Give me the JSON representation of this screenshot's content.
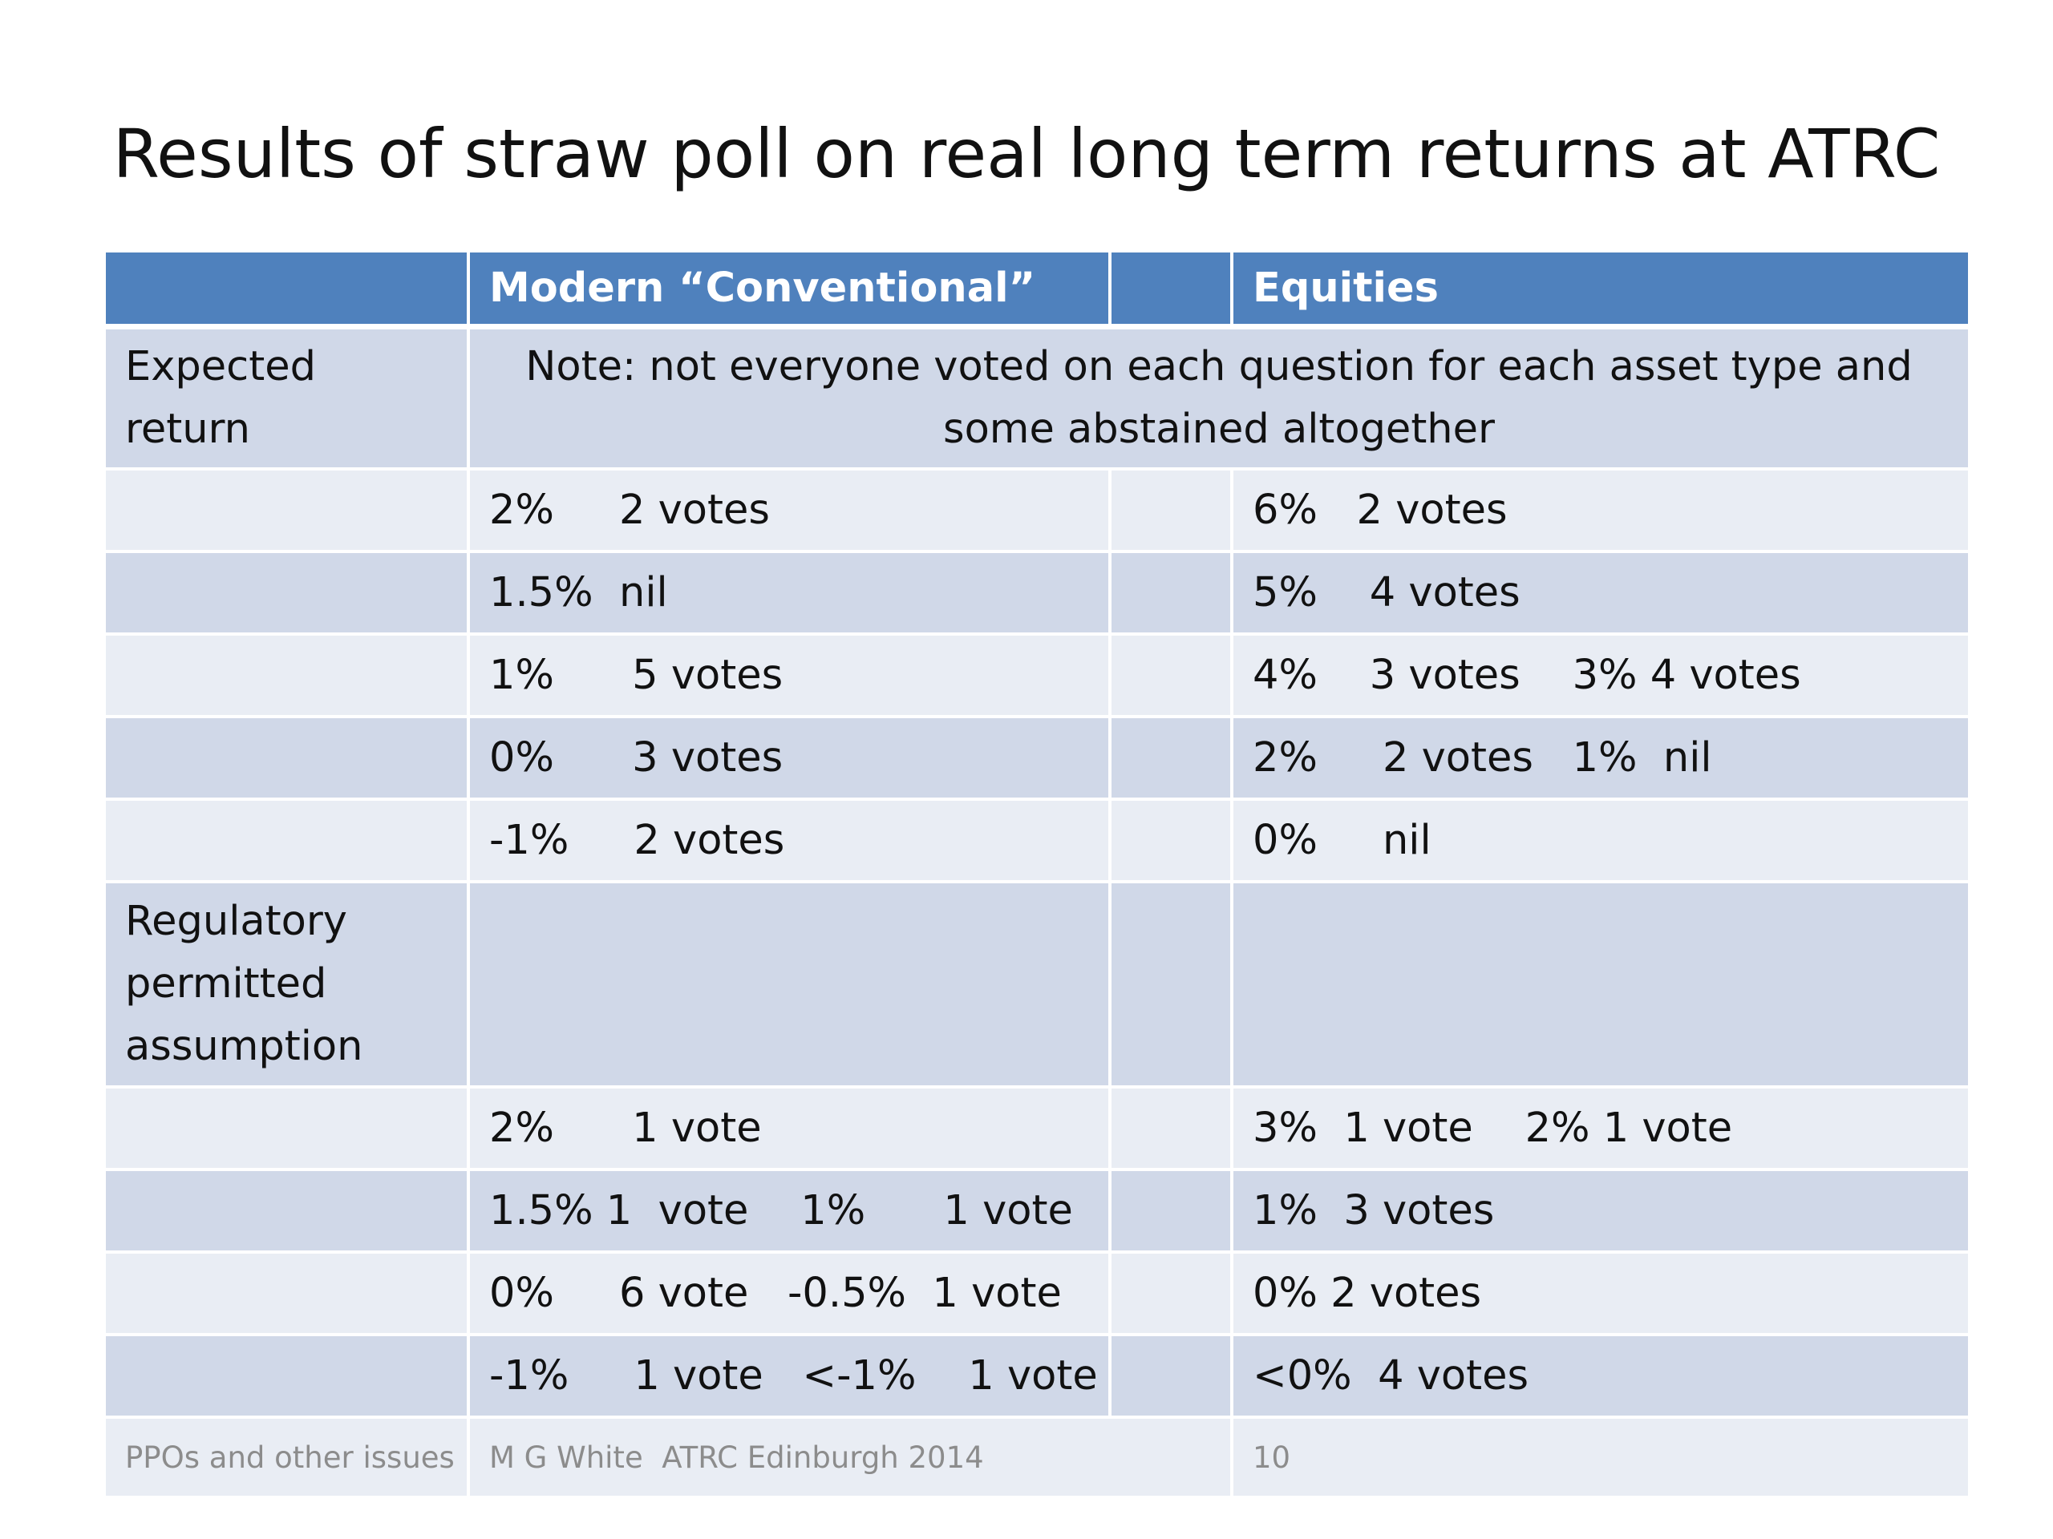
{
  "title": "Results of straw poll on real long term returns at ATRC",
  "table": {
    "headers": [
      "",
      "Modern “Conventional”",
      "",
      "Equities"
    ],
    "expected_return": {
      "label": "Expected return",
      "note": "Note: not everyone voted on each question for each asset type and some abstained altogether",
      "rows": [
        {
          "conventional": "2%     2 votes",
          "equities": "6%   2 votes"
        },
        {
          "conventional": "1.5%  nil",
          "equities": "5%    4 votes"
        },
        {
          "conventional": "1%      5 votes",
          "equities": "4%    3 votes    3% 4 votes"
        },
        {
          "conventional": "0%      3 votes",
          "equities": "2%     2 votes   1%  nil"
        },
        {
          "conventional": "-1%     2 votes",
          "equities": "0%     nil"
        }
      ]
    },
    "regulatory": {
      "label": "Regulatory permitted assumption",
      "rows": [
        {
          "conventional": "2%      1 vote",
          "equities": "3%  1 vote    2% 1 vote"
        },
        {
          "conventional": "1.5% 1  vote    1%      1 vote",
          "equities": "1%  3 votes"
        },
        {
          "conventional": "0%     6 vote   -0.5%  1 vote",
          "equities": "0% 2 votes"
        },
        {
          "conventional": "-1%     1 vote   <-1%    1 vote",
          "equities": "<0%  4 votes"
        }
      ]
    }
  },
  "footer": {
    "left": "PPOs and other issues",
    "center": "M G White  ATRC Edinburgh 2014",
    "page_number": "10"
  },
  "colors": {
    "header_bg": "#4f81bd",
    "band_dark": "#d0d8e8",
    "band_light": "#e9edf4"
  }
}
